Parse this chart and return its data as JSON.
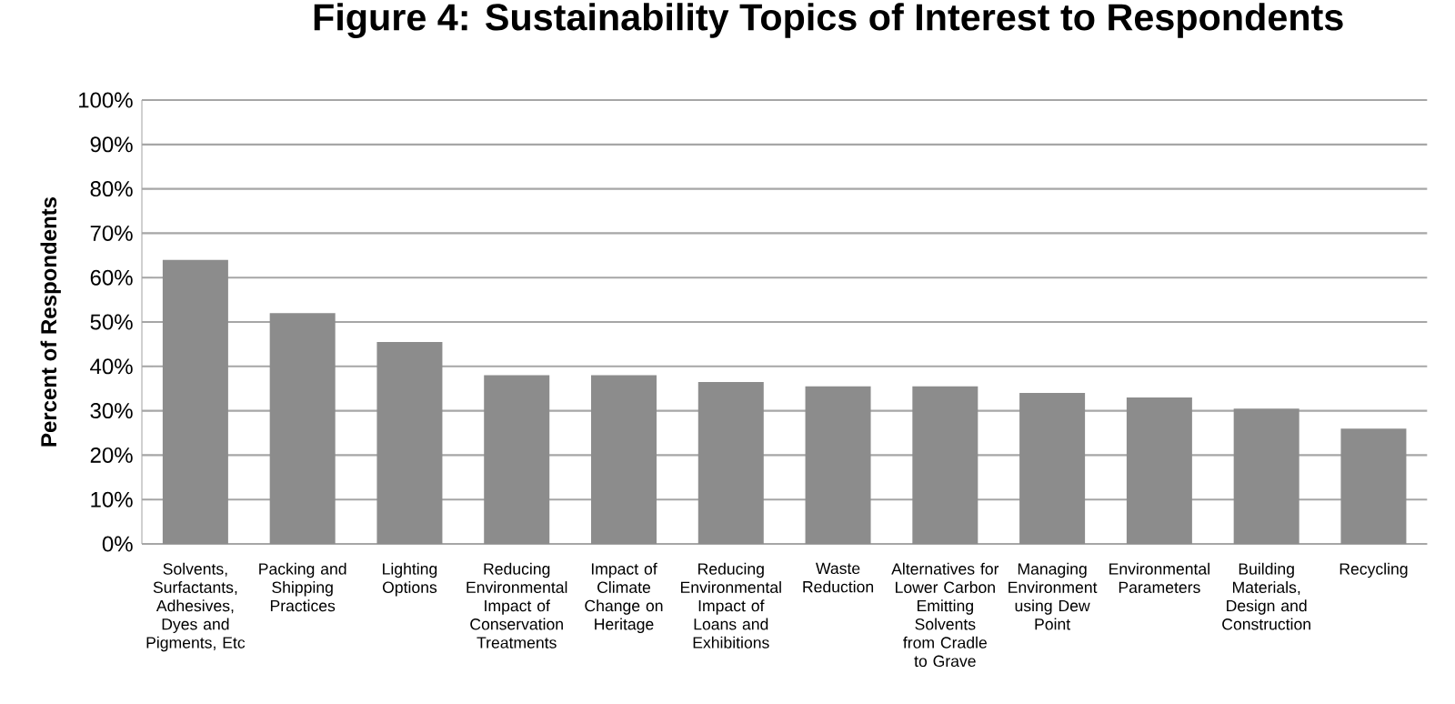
{
  "chart_data": {
    "type": "bar",
    "title": "Figure 4: Sustainability Topics of Interest to Respondents",
    "ylabel": "Percent of Respondents",
    "categories": [
      "Solvents, Surfactants, Adhesives, Dyes and Pigments, Etc",
      "Packing and Shipping Practices",
      "Lighting Options",
      "Reducing Environmental Impact of Conservation Treatments",
      "Impact of Climate Change on Heritage",
      "Reducing Environmental Impact of Loans and Exhibitions",
      "Waste Reduction",
      "Alternatives for Lower Carbon Emitting Solvents from Cradle to Grave",
      "Managing Environment using Dew Point",
      "Environmental Parameters",
      "Building Materials, Design and Construction",
      "Recycling"
    ],
    "values": [
      64,
      52,
      45.5,
      38,
      38,
      36.5,
      35.5,
      35.5,
      34,
      33,
      30.5,
      26
    ],
    "color": "#8c8c8c",
    "ylim": [
      0,
      100
    ],
    "yticks": [
      {
        "value": 0,
        "label": "0%"
      },
      {
        "value": 10,
        "label": "10%"
      },
      {
        "value": 20,
        "label": "20%"
      },
      {
        "value": 30,
        "label": "30%"
      },
      {
        "value": 40,
        "label": "40%"
      },
      {
        "value": 50,
        "label": "50%"
      },
      {
        "value": 60,
        "label": "60%"
      },
      {
        "value": 70,
        "label": "70%"
      },
      {
        "value": 80,
        "label": "80%"
      },
      {
        "value": 90,
        "label": "90%"
      },
      {
        "value": 100,
        "label": "100%"
      }
    ],
    "grid": "y"
  }
}
